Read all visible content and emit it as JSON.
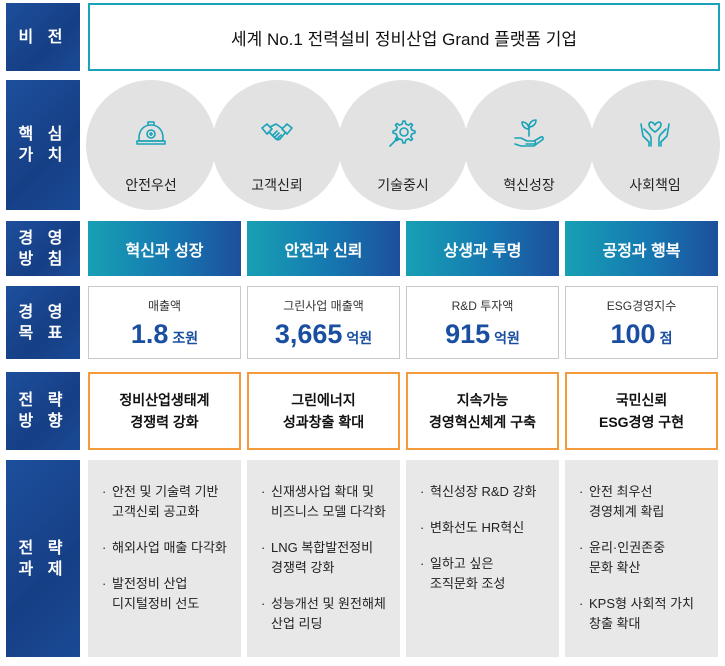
{
  "labels": {
    "vision": "비 전",
    "core_values": "핵 심\n가 치",
    "policy": "경 영\n방 침",
    "goals": "경 영\n목 표",
    "direction": "전 략\n방 향",
    "tasks": "전 략\n과 제"
  },
  "vision": "세계 No.1 전력설비 정비산업 Grand 플랫폼 기업",
  "core_values": [
    {
      "label": "안전우선",
      "icon": "helmet-icon"
    },
    {
      "label": "고객신뢰",
      "icon": "handshake-icon"
    },
    {
      "label": "기술중시",
      "icon": "gear-wrench-icon"
    },
    {
      "label": "혁신성장",
      "icon": "sprout-hand-icon"
    },
    {
      "label": "사회책임",
      "icon": "heart-hands-icon"
    }
  ],
  "policies": [
    "혁신과 성장",
    "안전과 신뢰",
    "상생과 투명",
    "공정과 행복"
  ],
  "goals": [
    {
      "label": "매출액",
      "value": "1.8",
      "unit": "조원"
    },
    {
      "label": "그린사업 매출액",
      "value": "3,665",
      "unit": "억원"
    },
    {
      "label": "R&D 투자액",
      "value": "915",
      "unit": "억원"
    },
    {
      "label": "ESG경영지수",
      "value": "100",
      "unit": "점"
    }
  ],
  "directions": [
    "정비산업생태계\n경쟁력 강화",
    "그린에너지\n성과창출 확대",
    "지속가능\n경영혁신체계 구축",
    "국민신뢰\nESG경영 구현"
  ],
  "tasks": [
    [
      "안전 및 기술력 기반\n고객신뢰 공고화",
      "해외사업 매출 다각화",
      "발전정비 산업\n디지털정비 선도"
    ],
    [
      "신재생사업 확대 및\n비즈니스 모델 다각화",
      "LNG 복합발전정비\n경쟁력 강화",
      "성능개선 및 원전해체\n산업 리딩"
    ],
    [
      "혁신성장 R&D 강화",
      "변화선도 HR혁신",
      "일하고 싶은\n조직문화 조성"
    ],
    [
      "안전 최우선\n경영체계 확립",
      "윤리·인권존중\n문화 확산",
      "KPS형 사회적 가치\n창출 확대"
    ]
  ],
  "colors": {
    "label_bg": "#1d4f9c",
    "policy_start": "#17a0b4",
    "policy_end": "#1d4f9c",
    "goal_value": "#1a4ea0",
    "direction_border": "#f39a3d",
    "vision_border": "#1aa3b8",
    "icon": "#1aa3b8"
  }
}
